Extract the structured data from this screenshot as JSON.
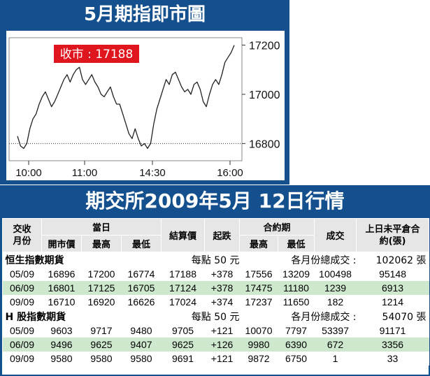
{
  "chart": {
    "title": "5月期指即市圖",
    "close_label": "收市 : 17188"
  },
  "chart_data": {
    "type": "line",
    "x_ticks": [
      "10:00",
      "11:00",
      "14:30",
      "16:00"
    ],
    "y_ticks": [
      16800,
      17000,
      17200
    ],
    "ylim": [
      16730,
      17230
    ],
    "reference_line": 16800,
    "close": 17188,
    "series": [
      {
        "values": [
          16830,
          16790,
          16780,
          16800,
          16860,
          16900,
          16920,
          16960,
          16990,
          17010,
          16980,
          16950,
          16970,
          17000,
          17030,
          17060,
          17080,
          17050,
          17080,
          17100,
          17110,
          17060,
          17040,
          17060,
          17080,
          17050,
          17030,
          17000,
          16990,
          17010,
          17030,
          16990,
          16960,
          16960,
          16920,
          16880,
          16840,
          16820,
          16860,
          16820,
          16790,
          16800,
          16780,
          16800,
          16880,
          16940,
          16980,
          17020,
          17060,
          17040,
          17080,
          17090,
          17060,
          17030,
          17010,
          17020,
          17000,
          17040,
          17050,
          17020,
          16970,
          16950,
          17000,
          17040,
          17060,
          17040,
          17080,
          17130,
          17150,
          17170,
          17200
        ]
      }
    ]
  },
  "table": {
    "title": "期交所2009年5月 12日行情",
    "headers": {
      "contract": "交收月份",
      "day": "當日",
      "open": "開市價",
      "high": "最高",
      "low": "最低",
      "settle": "結算價",
      "change": "起跌",
      "contract_period": "合約期",
      "cp_high": "最高",
      "cp_low": "最低",
      "volume": "成交",
      "oi": "上日未平倉合約(張)"
    },
    "sections": [
      {
        "name": "恒生指數期貨",
        "per_point": "每點 50 元",
        "total_label": "各月份總成交 :",
        "total": "102062 張",
        "rows": [
          {
            "month": "05/09",
            "open": "16896",
            "high": "17200",
            "low": "16774",
            "settle": "17188",
            "change": "+378",
            "cp_high": "17556",
            "cp_low": "13209",
            "volume": "100498",
            "oi": "95148"
          },
          {
            "month": "06/09",
            "open": "16801",
            "high": "17125",
            "low": "16705",
            "settle": "17124",
            "change": "+378",
            "cp_high": "17475",
            "cp_low": "11180",
            "volume": "1239",
            "oi": "6913"
          },
          {
            "month": "09/09",
            "open": "16710",
            "high": "16920",
            "low": "16626",
            "settle": "17024",
            "change": "+374",
            "cp_high": "17237",
            "cp_low": "11650",
            "volume": "182",
            "oi": "1214"
          }
        ]
      },
      {
        "name": "H 股指數期貨",
        "per_point": "每點 50 元",
        "total_label": "各月份總成交 :",
        "total": "54070 張",
        "rows": [
          {
            "month": "05/09",
            "open": "9603",
            "high": "9717",
            "low": "9480",
            "settle": "9705",
            "change": "+121",
            "cp_high": "10070",
            "cp_low": "7797",
            "volume": "53397",
            "oi": "91171"
          },
          {
            "month": "06/09",
            "open": "9496",
            "high": "9625",
            "low": "9407",
            "settle": "9625",
            "change": "+126",
            "cp_high": "9980",
            "cp_low": "6390",
            "volume": "672",
            "oi": "3356"
          },
          {
            "month": "09/09",
            "open": "9580",
            "high": "9580",
            "low": "9580",
            "settle": "9691",
            "change": "+121",
            "cp_high": "9872",
            "cp_low": "6750",
            "volume": "1",
            "oi": "33"
          }
        ]
      }
    ]
  },
  "colors": {
    "panel_blue": "#14508d",
    "label_red": "#e0161e",
    "row_green": "#cde8cd",
    "header_grey": "#e6e6e6"
  }
}
